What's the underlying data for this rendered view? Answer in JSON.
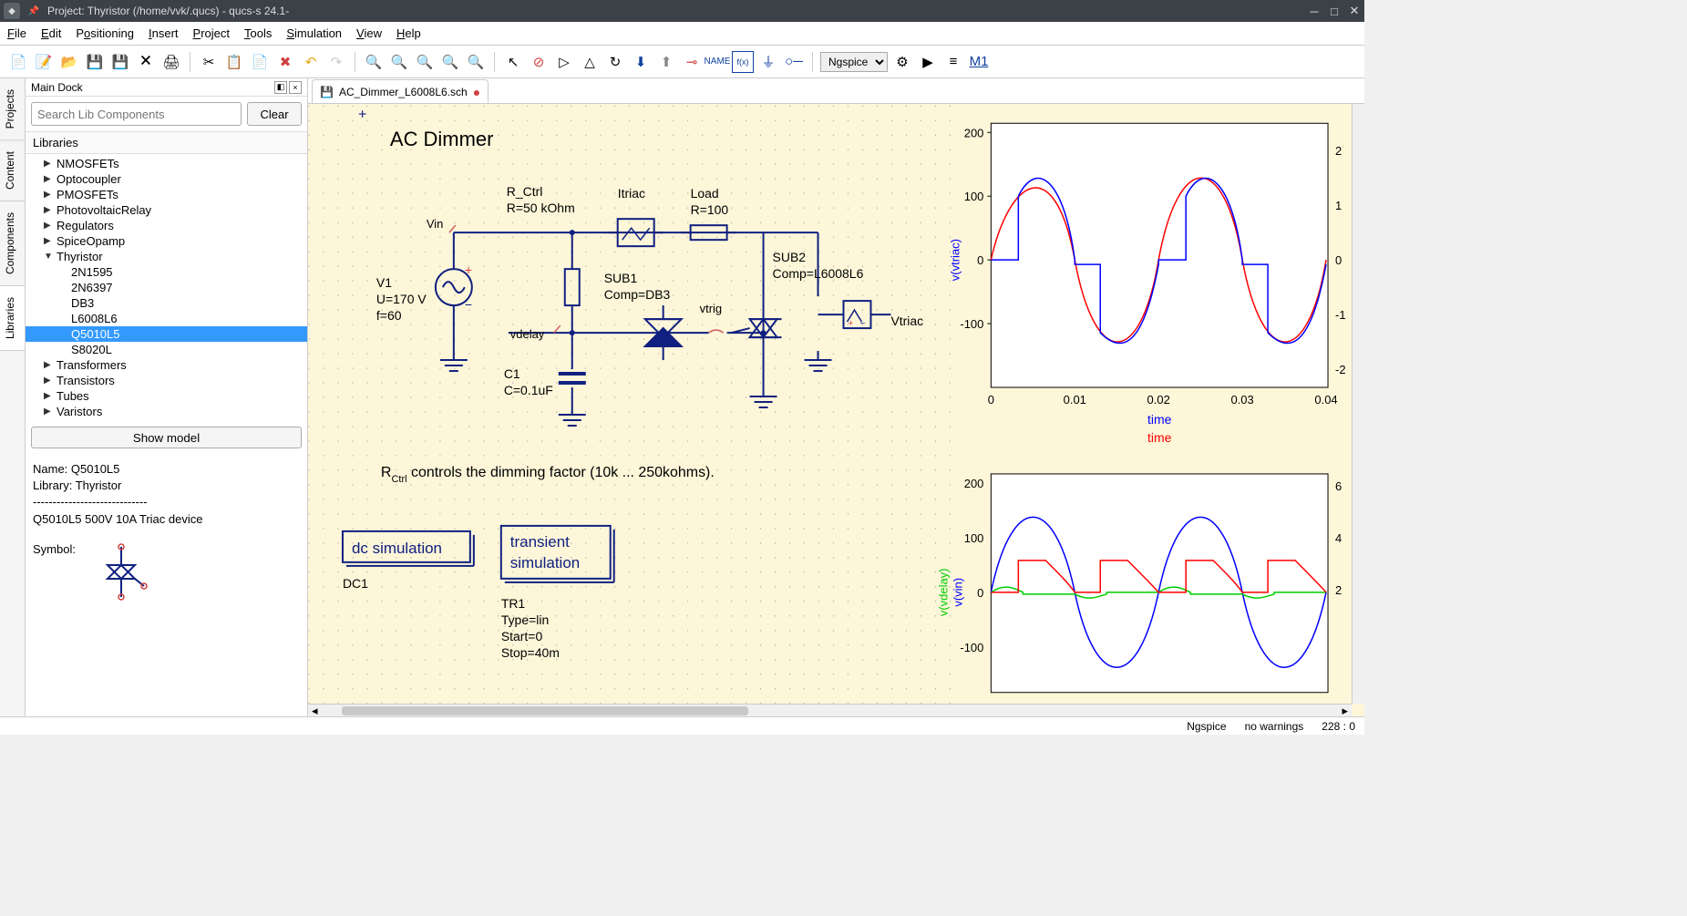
{
  "window": {
    "title": "Project: Thyristor (/home/vvk/.qucs) - qucs-s 24.1-"
  },
  "menubar": [
    "File",
    "Edit",
    "Positioning",
    "Insert",
    "Project",
    "Tools",
    "Simulation",
    "View",
    "Help"
  ],
  "simulator": {
    "selected": "Ngspice"
  },
  "dock": {
    "title": "Main Dock",
    "search_placeholder": "Search Lib Components",
    "clear_label": "Clear",
    "libraries_label": "Libraries",
    "show_model_label": "Show model"
  },
  "side_tabs": [
    "Projects",
    "Content",
    "Components",
    "Libraries"
  ],
  "tree": {
    "items": [
      {
        "label": "NMOSFETs",
        "expanded": false,
        "child": false
      },
      {
        "label": "Optocoupler",
        "expanded": false,
        "child": false
      },
      {
        "label": "PMOSFETs",
        "expanded": false,
        "child": false
      },
      {
        "label": "PhotovoltaicRelay",
        "expanded": false,
        "child": false
      },
      {
        "label": "Regulators",
        "expanded": false,
        "child": false
      },
      {
        "label": "SpiceOpamp",
        "expanded": false,
        "child": false
      },
      {
        "label": "Thyristor",
        "expanded": true,
        "child": false
      },
      {
        "label": "2N1595",
        "child": true
      },
      {
        "label": "2N6397",
        "child": true
      },
      {
        "label": "DB3",
        "child": true
      },
      {
        "label": "L6008L6",
        "child": true
      },
      {
        "label": "Q5010L5",
        "child": true,
        "selected": true
      },
      {
        "label": "S8020L",
        "child": true
      },
      {
        "label": "Transformers",
        "expanded": false,
        "child": false
      },
      {
        "label": "Transistors",
        "expanded": false,
        "child": false
      },
      {
        "label": "Tubes",
        "expanded": false,
        "child": false
      },
      {
        "label": "Varistors",
        "expanded": false,
        "child": false
      }
    ]
  },
  "component_info": {
    "name_label": "Name: Q5010L5",
    "library_label": "Library: Thyristor",
    "separator": "-----------------------------",
    "description": "Q5010L5 500V 10A Triac device",
    "symbol_label": "Symbol:"
  },
  "file_tab": {
    "name": "AC_Dimmer_L6008L6.sch"
  },
  "status": {
    "simulator": "Ngspice",
    "warnings": "no warnings",
    "coords": "228 : 0"
  },
  "schematic": {
    "title": "AC Dimmer",
    "subtitle_html": "R<tspan baseline-shift='sub' font-size='10'>Ctrl</tspan> controls the dimming factor (10k ... 250kohms).",
    "v1": {
      "name": "V1",
      "u": "U=170 V",
      "f": "f=60"
    },
    "rctrl": {
      "name": "R_Ctrl",
      "val": "R=50 kOhm"
    },
    "itriac": "Itriac",
    "load": {
      "name": "Load",
      "val": "R=100"
    },
    "sub1": {
      "name": "SUB1",
      "comp": "Comp=DB3"
    },
    "sub2": {
      "name": "SUB2",
      "comp": "Comp=L6008L6"
    },
    "c1": {
      "name": "C1",
      "val": "C=0.1uF"
    },
    "vin": "Vin",
    "vdelay": "vdelay",
    "vtrig": "vtrig",
    "vtriac": "Vtriac",
    "dc": {
      "box": "dc simulation",
      "label": "DC1"
    },
    "tr": {
      "box1": "transient",
      "box2": "simulation",
      "label": "TR1",
      "type": "Type=lin",
      "start": "Start=0",
      "stop": "Stop=40m"
    }
  },
  "chart1": {
    "ylabel": "v(vtriac)",
    "ylabel_color": "#0000ff",
    "xlabel1": "time",
    "xlabel1_color": "#0000ff",
    "xlabel2": "time",
    "xlabel2_color": "#ff0000",
    "yticks": [
      -100,
      0,
      100,
      200
    ],
    "y2ticks": [
      -2,
      -1,
      0,
      1,
      2
    ],
    "xticks": [
      0,
      0.01,
      0.02,
      0.03,
      0.04
    ],
    "background": "#ffffff",
    "series_red_color": "#ff0000",
    "series_blue_color": "#0000ff"
  },
  "chart2": {
    "ylabel1": "v(vdelay)",
    "ylabel1_color": "#00cc00",
    "ylabel2": "v(vin)",
    "ylabel2_color": "#0000ff",
    "yticks": [
      -100,
      0,
      100,
      200
    ],
    "y2ticks": [
      2,
      4,
      6
    ],
    "background": "#ffffff"
  }
}
